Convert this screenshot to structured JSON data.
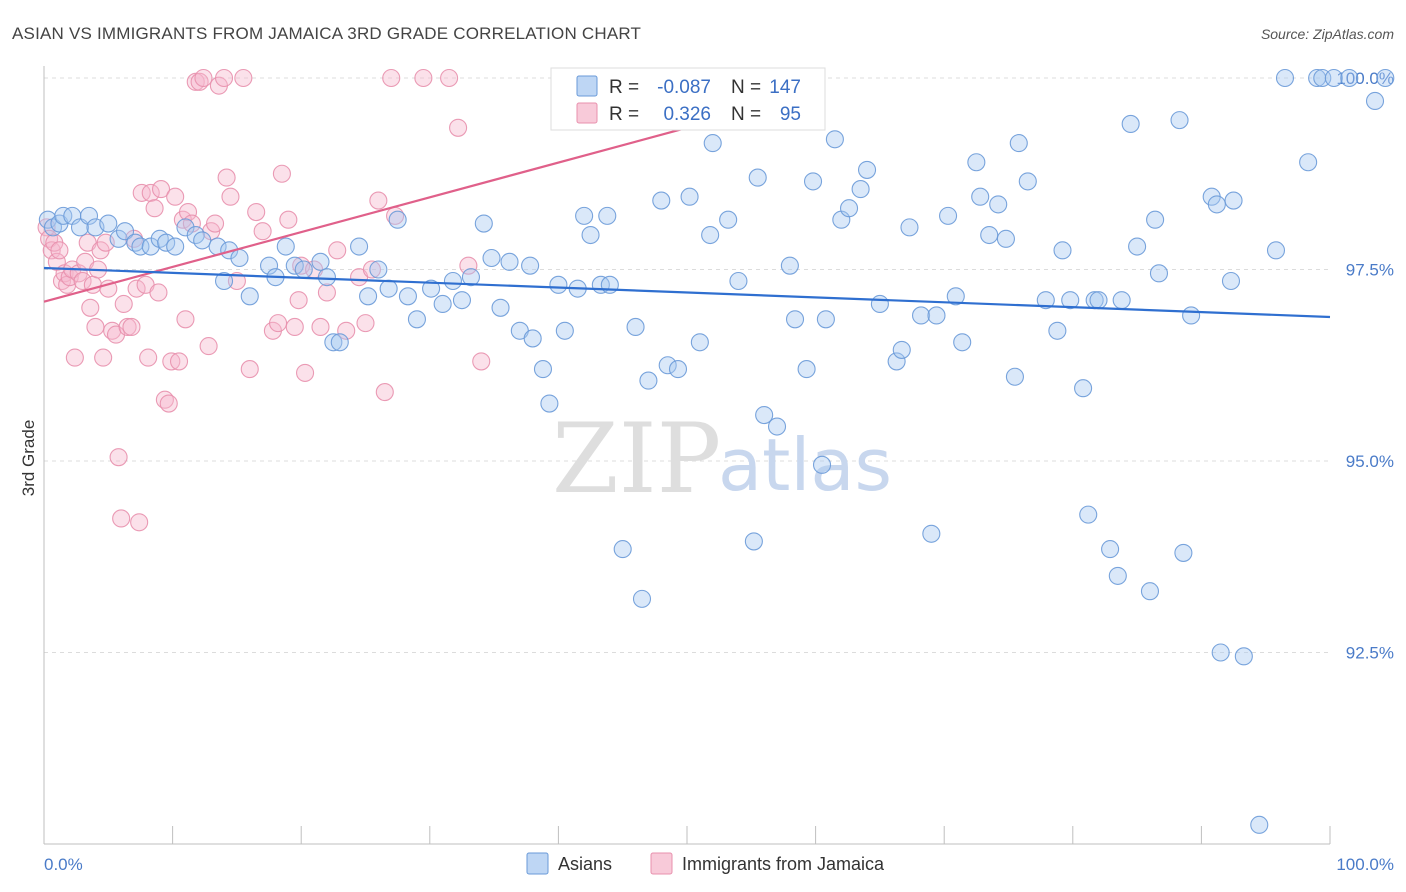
{
  "header": {
    "title": "ASIAN VS IMMIGRANTS FROM JAMAICA 3RD GRADE CORRELATION CHART",
    "source": "Source: ZipAtlas.com"
  },
  "legend_box": {
    "row1": {
      "r_label": "R =",
      "r_value": "-0.087",
      "n_label": "N =",
      "n_value": "147"
    },
    "row2": {
      "r_label": "R =",
      "r_value": "0.326",
      "n_label": "N =",
      "n_value": "95"
    }
  },
  "bottom_legend": {
    "asians": "Asians",
    "jamaica": "Immigrants from Jamaica"
  },
  "watermark": {
    "zip": "ZIP",
    "atlas": "atlas"
  },
  "colors": {
    "asian_fill": "#a8c8f0",
    "asian_stroke": "#6a9ad8",
    "asian_line": "#2f6fd0",
    "jam_fill": "#f6b8cc",
    "jam_stroke": "#e890ad",
    "jam_line": "#e0608a",
    "tick_label": "#4a7bc8",
    "grid": "#dcdcdc"
  },
  "chart_data": {
    "type": "scatter",
    "title": "ASIAN VS IMMIGRANTS FROM JAMAICA 3RD GRADE CORRELATION CHART",
    "xlabel": "",
    "ylabel": "3rd Grade",
    "xlim": [
      0,
      100
    ],
    "ylim": [
      90.0,
      100.3
    ],
    "x_tick_labels": [
      "0.0%",
      "100.0%"
    ],
    "y_ticks": [
      92.5,
      95.0,
      97.5,
      100.0
    ],
    "y_tick_labels": [
      "92.5%",
      "95.0%",
      "97.5%",
      "100.0%"
    ],
    "grid": true,
    "legend_position": "top-center",
    "series": [
      {
        "name": "Asians",
        "r": -0.087,
        "n": 147,
        "trend": [
          [
            0,
            97.52
          ],
          [
            100,
            96.88
          ]
        ],
        "points": [
          [
            0.3,
            98.15
          ],
          [
            0.7,
            98.05
          ],
          [
            1.2,
            98.1
          ],
          [
            1.5,
            98.2
          ],
          [
            2.2,
            98.2
          ],
          [
            2.8,
            98.05
          ],
          [
            3.5,
            98.2
          ],
          [
            4.0,
            98.05
          ],
          [
            5.0,
            98.1
          ],
          [
            5.8,
            97.9
          ],
          [
            6.3,
            98.0
          ],
          [
            7.1,
            97.85
          ],
          [
            7.5,
            97.8
          ],
          [
            8.3,
            97.8
          ],
          [
            9.0,
            97.9
          ],
          [
            9.5,
            97.85
          ],
          [
            10.2,
            97.8
          ],
          [
            11.0,
            98.05
          ],
          [
            11.8,
            97.95
          ],
          [
            12.3,
            97.88
          ],
          [
            13.5,
            97.8
          ],
          [
            14.0,
            97.35
          ],
          [
            14.4,
            97.75
          ],
          [
            15.2,
            97.65
          ],
          [
            16.0,
            97.15
          ],
          [
            17.5,
            97.55
          ],
          [
            18.0,
            97.4
          ],
          [
            18.8,
            97.8
          ],
          [
            19.5,
            97.55
          ],
          [
            20.2,
            97.5
          ],
          [
            21.5,
            97.6
          ],
          [
            22.0,
            97.4
          ],
          [
            22.5,
            96.55
          ],
          [
            23.0,
            96.55
          ],
          [
            24.5,
            97.8
          ],
          [
            25.2,
            97.15
          ],
          [
            26.0,
            97.5
          ],
          [
            26.8,
            97.25
          ],
          [
            27.5,
            98.15
          ],
          [
            28.3,
            97.15
          ],
          [
            29.0,
            96.85
          ],
          [
            30.1,
            97.25
          ],
          [
            31.0,
            97.05
          ],
          [
            31.8,
            97.35
          ],
          [
            32.5,
            97.1
          ],
          [
            33.2,
            97.4
          ],
          [
            34.2,
            98.1
          ],
          [
            34.8,
            97.65
          ],
          [
            35.5,
            97.0
          ],
          [
            36.2,
            97.6
          ],
          [
            37.0,
            96.7
          ],
          [
            37.8,
            97.55
          ],
          [
            38.0,
            96.6
          ],
          [
            38.8,
            96.2
          ],
          [
            39.3,
            95.75
          ],
          [
            40.0,
            97.3
          ],
          [
            40.5,
            96.7
          ],
          [
            41.5,
            97.25
          ],
          [
            42.0,
            98.2
          ],
          [
            42.5,
            97.95
          ],
          [
            43.3,
            97.3
          ],
          [
            43.8,
            98.2
          ],
          [
            44.0,
            97.3
          ],
          [
            45.0,
            93.85
          ],
          [
            46.0,
            96.75
          ],
          [
            46.5,
            93.2
          ],
          [
            47.0,
            96.05
          ],
          [
            48.0,
            98.4
          ],
          [
            48.5,
            96.25
          ],
          [
            49.3,
            96.2
          ],
          [
            50.2,
            98.45
          ],
          [
            51.0,
            96.55
          ],
          [
            51.8,
            97.95
          ],
          [
            52.0,
            99.15
          ],
          [
            53.2,
            98.15
          ],
          [
            54.0,
            97.35
          ],
          [
            55.2,
            93.95
          ],
          [
            55.5,
            98.7
          ],
          [
            56.0,
            95.6
          ],
          [
            57.0,
            95.45
          ],
          [
            58.0,
            97.55
          ],
          [
            58.4,
            96.85
          ],
          [
            59.3,
            96.2
          ],
          [
            59.8,
            98.65
          ],
          [
            60.5,
            94.95
          ],
          [
            60.8,
            96.85
          ],
          [
            61.5,
            99.2
          ],
          [
            62.0,
            98.15
          ],
          [
            62.6,
            98.3
          ],
          [
            63.5,
            98.55
          ],
          [
            64.0,
            98.8
          ],
          [
            65.0,
            97.05
          ],
          [
            66.3,
            96.3
          ],
          [
            66.7,
            96.45
          ],
          [
            67.3,
            98.05
          ],
          [
            68.2,
            96.9
          ],
          [
            69.0,
            94.05
          ],
          [
            69.4,
            96.9
          ],
          [
            70.3,
            98.2
          ],
          [
            70.9,
            97.15
          ],
          [
            71.4,
            96.55
          ],
          [
            72.5,
            98.9
          ],
          [
            72.8,
            98.45
          ],
          [
            73.5,
            97.95
          ],
          [
            74.2,
            98.35
          ],
          [
            74.8,
            97.9
          ],
          [
            75.5,
            96.1
          ],
          [
            75.8,
            99.15
          ],
          [
            76.5,
            98.65
          ],
          [
            77.9,
            97.1
          ],
          [
            78.8,
            96.7
          ],
          [
            79.2,
            97.75
          ],
          [
            79.8,
            97.1
          ],
          [
            80.8,
            95.95
          ],
          [
            81.2,
            94.3
          ],
          [
            81.7,
            97.1
          ],
          [
            82.0,
            97.1
          ],
          [
            82.9,
            93.85
          ],
          [
            83.5,
            93.5
          ],
          [
            83.8,
            97.1
          ],
          [
            84.5,
            99.4
          ],
          [
            85.0,
            97.8
          ],
          [
            86.0,
            93.3
          ],
          [
            86.4,
            98.15
          ],
          [
            86.7,
            97.45
          ],
          [
            88.3,
            99.45
          ],
          [
            88.6,
            93.8
          ],
          [
            89.2,
            96.9
          ],
          [
            90.8,
            98.45
          ],
          [
            91.2,
            98.35
          ],
          [
            91.5,
            92.5
          ],
          [
            92.3,
            97.35
          ],
          [
            92.5,
            98.4
          ],
          [
            93.3,
            92.45
          ],
          [
            94.5,
            90.25
          ],
          [
            95.8,
            97.75
          ],
          [
            96.5,
            100.0
          ],
          [
            98.3,
            98.9
          ],
          [
            99.0,
            100.0
          ],
          [
            99.4,
            100.0
          ],
          [
            100.3,
            100.0
          ],
          [
            101.5,
            100.0
          ],
          [
            103.5,
            99.7
          ],
          [
            104.3,
            100.0
          ]
        ]
      },
      {
        "name": "Immigrants from Jamaica",
        "r": 0.326,
        "n": 95,
        "trend": [
          [
            0,
            97.08
          ],
          [
            50,
            99.35
          ]
        ],
        "points": [
          [
            0.2,
            98.05
          ],
          [
            0.4,
            97.9
          ],
          [
            0.6,
            97.75
          ],
          [
            0.8,
            97.85
          ],
          [
            1.0,
            97.6
          ],
          [
            1.2,
            97.75
          ],
          [
            1.4,
            97.35
          ],
          [
            1.6,
            97.45
          ],
          [
            1.8,
            97.3
          ],
          [
            2.0,
            97.4
          ],
          [
            2.2,
            97.5
          ],
          [
            2.4,
            96.35
          ],
          [
            2.7,
            97.45
          ],
          [
            3.0,
            97.35
          ],
          [
            3.2,
            97.6
          ],
          [
            3.4,
            97.85
          ],
          [
            3.6,
            97.0
          ],
          [
            3.8,
            97.3
          ],
          [
            4.0,
            96.75
          ],
          [
            4.2,
            97.5
          ],
          [
            4.4,
            97.75
          ],
          [
            4.6,
            96.35
          ],
          [
            4.8,
            97.85
          ],
          [
            5.0,
            97.25
          ],
          [
            5.3,
            96.7
          ],
          [
            5.6,
            96.65
          ],
          [
            5.8,
            95.05
          ],
          [
            6.0,
            94.25
          ],
          [
            6.2,
            97.05
          ],
          [
            6.5,
            96.75
          ],
          [
            6.8,
            96.75
          ],
          [
            7.0,
            97.9
          ],
          [
            7.2,
            97.25
          ],
          [
            7.4,
            94.2
          ],
          [
            7.6,
            98.5
          ],
          [
            7.9,
            97.3
          ],
          [
            8.1,
            96.35
          ],
          [
            8.3,
            98.5
          ],
          [
            8.6,
            98.3
          ],
          [
            8.9,
            97.2
          ],
          [
            9.1,
            98.55
          ],
          [
            9.4,
            95.8
          ],
          [
            9.7,
            95.75
          ],
          [
            9.9,
            96.3
          ],
          [
            10.2,
            98.45
          ],
          [
            10.5,
            96.3
          ],
          [
            10.8,
            98.15
          ],
          [
            11.0,
            96.85
          ],
          [
            11.2,
            98.25
          ],
          [
            11.5,
            98.1
          ],
          [
            11.8,
            99.95
          ],
          [
            12.1,
            99.95
          ],
          [
            12.4,
            100.0
          ],
          [
            12.8,
            96.5
          ],
          [
            13.0,
            98.0
          ],
          [
            13.3,
            98.1
          ],
          [
            13.6,
            99.9
          ],
          [
            14.0,
            100.0
          ],
          [
            14.2,
            98.7
          ],
          [
            14.5,
            98.45
          ],
          [
            15.0,
            97.35
          ],
          [
            15.5,
            100.0
          ],
          [
            16.0,
            96.2
          ],
          [
            16.5,
            98.25
          ],
          [
            17.0,
            98.0
          ],
          [
            17.8,
            96.7
          ],
          [
            18.2,
            96.8
          ],
          [
            18.5,
            98.75
          ],
          [
            19.0,
            98.15
          ],
          [
            19.5,
            96.75
          ],
          [
            19.8,
            97.1
          ],
          [
            20.0,
            97.55
          ],
          [
            20.3,
            96.15
          ],
          [
            21.0,
            97.5
          ],
          [
            21.5,
            96.75
          ],
          [
            22.0,
            97.2
          ],
          [
            22.8,
            97.75
          ],
          [
            23.5,
            96.7
          ],
          [
            24.5,
            97.4
          ],
          [
            25.0,
            96.8
          ],
          [
            25.5,
            97.5
          ],
          [
            26.0,
            98.4
          ],
          [
            26.5,
            95.9
          ],
          [
            27.0,
            100.0
          ],
          [
            27.3,
            98.2
          ],
          [
            29.5,
            100.0
          ],
          [
            31.5,
            100.0
          ],
          [
            32.2,
            99.35
          ],
          [
            33.0,
            97.55
          ],
          [
            34.0,
            96.3
          ]
        ]
      }
    ]
  }
}
